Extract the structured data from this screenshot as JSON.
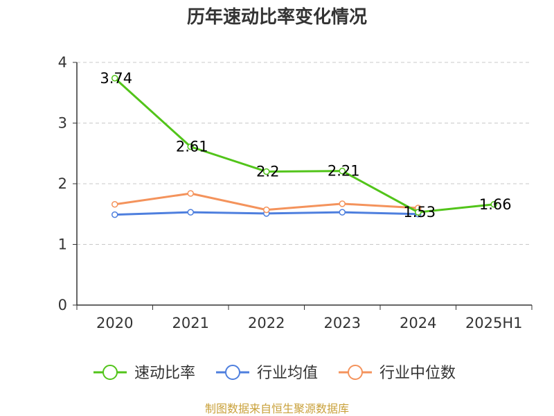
{
  "chart_data": {
    "type": "line",
    "title": "历年速动比率变化情况",
    "categories": [
      "2020",
      "2021",
      "2022",
      "2023",
      "2024",
      "2025H1"
    ],
    "ylim": [
      0,
      4
    ],
    "yticks": [
      0,
      1,
      2,
      3,
      4
    ],
    "grid": true,
    "legend_position": "bottom",
    "series": [
      {
        "name": "速动比率",
        "color": "#52c41a",
        "values": [
          3.74,
          2.61,
          2.2,
          2.21,
          1.53,
          1.66
        ],
        "labels": [
          "3.74",
          "2.61",
          "2.2",
          "2.21",
          "1.53",
          "1.66"
        ]
      },
      {
        "name": "行业均值",
        "color": "#4e7fde",
        "values": [
          1.49,
          1.53,
          1.51,
          1.53,
          1.5,
          null
        ]
      },
      {
        "name": "行业中位数",
        "color": "#f4935c",
        "values": [
          1.66,
          1.84,
          1.57,
          1.67,
          1.6,
          null
        ]
      }
    ]
  },
  "source_text": "制图数据来自恒生聚源数据库",
  "source_color": "#c9a13b"
}
